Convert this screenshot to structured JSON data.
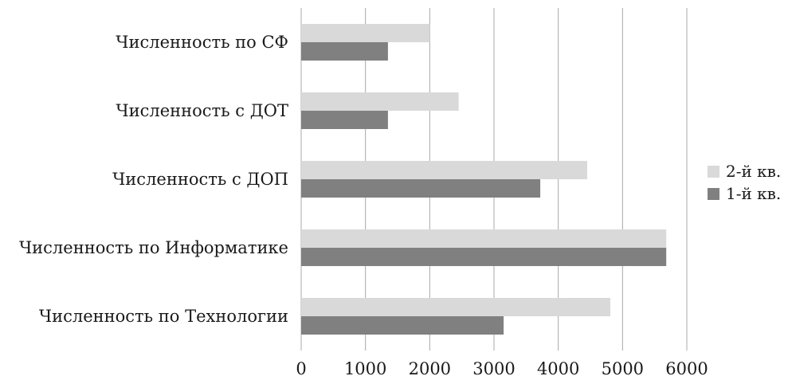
{
  "chart_data": {
    "type": "bar",
    "orientation": "horizontal",
    "categories": [
      "Численность по СФ",
      "Численность с ДОТ",
      "Численность с ДОП",
      "Численность по Информатике",
      "Численность по Технологии"
    ],
    "series": [
      {
        "name": "2-й кв.",
        "values": [
          2000,
          2450,
          4450,
          5680,
          4810
        ],
        "color": "#d9d9d9"
      },
      {
        "name": "1-й кв.",
        "values": [
          1350,
          1350,
          3720,
          5680,
          3150
        ],
        "color": "#808080"
      }
    ],
    "xlim": [
      0,
      6000
    ],
    "xticks": [
      "0",
      "1000",
      "2000",
      "3000",
      "4000",
      "5000",
      "6000"
    ],
    "grid": "vertical",
    "legend_position": "right"
  }
}
